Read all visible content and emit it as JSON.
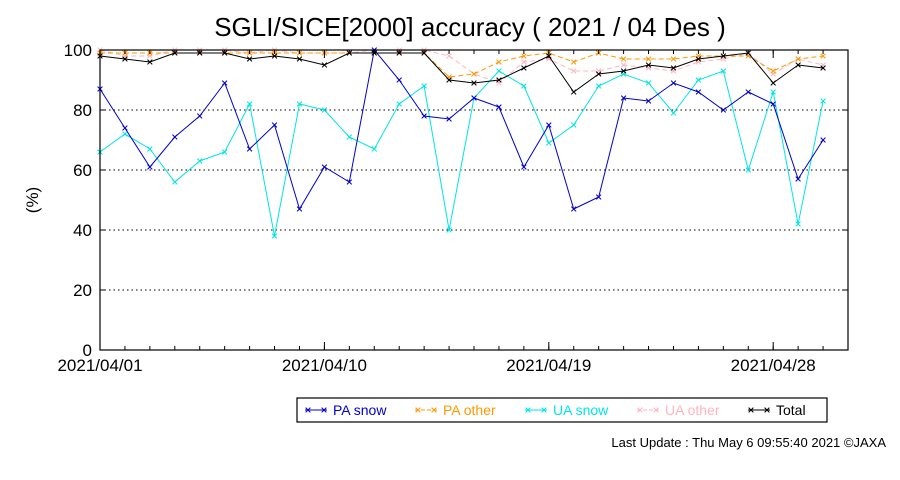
{
  "chart_data": {
    "type": "line",
    "title": "SGLI/SICE[2000] accuracy ( 2021 / 04 Des )",
    "ylabel": "(%)",
    "xlabel": "",
    "ylim": [
      0,
      100
    ],
    "yticks": [
      0,
      20,
      40,
      60,
      80,
      100
    ],
    "xlim": [
      "2021/04/01",
      "2021/05/01"
    ],
    "xticks": [
      "2021/04/01",
      "2021/04/10",
      "2021/04/19",
      "2021/04/28"
    ],
    "grid": "horizontal-dotted",
    "legend_position": "bottom-right",
    "x": [
      "2021/04/01",
      "2021/04/02",
      "2021/04/03",
      "2021/04/04",
      "2021/04/05",
      "2021/04/06",
      "2021/04/07",
      "2021/04/08",
      "2021/04/09",
      "2021/04/10",
      "2021/04/11",
      "2021/04/12",
      "2021/04/13",
      "2021/04/14",
      "2021/04/15",
      "2021/04/16",
      "2021/04/17",
      "2021/04/18",
      "2021/04/19",
      "2021/04/20",
      "2021/04/21",
      "2021/04/22",
      "2021/04/23",
      "2021/04/24",
      "2021/04/25",
      "2021/04/26",
      "2021/04/27",
      "2021/04/28",
      "2021/04/29",
      "2021/04/30"
    ],
    "series": [
      {
        "name": "PA snow",
        "color": "#0000cc",
        "values": [
          87,
          74,
          61,
          71,
          78,
          89,
          67,
          75,
          47,
          61,
          56,
          100,
          90,
          78,
          77,
          84,
          81,
          61,
          75,
          47,
          51,
          84,
          83,
          89,
          86,
          80,
          86,
          82,
          57,
          70
        ]
      },
      {
        "name": "PA other",
        "color": "#ff9900",
        "values": [
          99,
          99,
          99,
          99,
          99,
          99,
          99,
          99,
          99,
          99,
          99,
          99,
          99,
          99,
          91,
          92,
          96,
          98,
          99,
          96,
          99,
          97,
          97,
          97,
          98,
          98,
          98,
          93,
          97,
          98
        ]
      },
      {
        "name": "UA snow",
        "color": "#00e5e5",
        "values": [
          66,
          72,
          67,
          56,
          63,
          66,
          82,
          38,
          82,
          80,
          71,
          67,
          82,
          88,
          40,
          84,
          93,
          88,
          69,
          75,
          88,
          92,
          89,
          79,
          90,
          93,
          60,
          86,
          42,
          83
        ]
      },
      {
        "name": "UA other",
        "color": "#ffb6c1",
        "values": [
          100,
          98,
          98,
          100,
          100,
          100,
          99,
          100,
          99,
          99,
          99,
          100,
          100,
          100,
          98,
          92,
          89,
          96,
          97,
          93,
          93,
          95,
          94,
          93,
          96,
          97,
          99,
          92,
          97,
          95
        ]
      },
      {
        "name": "Total",
        "color": "#000000",
        "values": [
          98,
          97,
          96,
          99,
          99,
          99,
          97,
          98,
          97,
          95,
          99,
          99,
          99,
          99,
          90,
          89,
          90,
          94,
          98,
          86,
          92,
          93,
          95,
          94,
          97,
          98,
          99,
          89,
          95,
          94
        ]
      }
    ]
  },
  "footer": {
    "last_update": "Last Update : Thu May  6 09:55:40 2021  ©JAXA"
  }
}
